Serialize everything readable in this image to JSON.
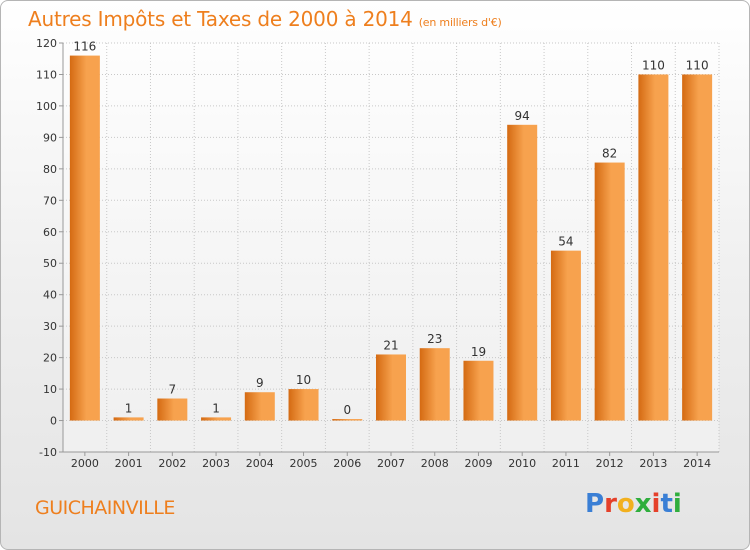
{
  "title": "Autres Impôts et Taxes de 2000 à 2014",
  "title_unit": "(en milliers d'€)",
  "town": "GUICHAINVILLE",
  "logo": {
    "text": "Proxiti",
    "colors": [
      "#3a7fd5",
      "#e5402a",
      "#f2b01e",
      "#2fae3d",
      "#e5402a",
      "#3a7fd5",
      "#2fae3d"
    ]
  },
  "colors": {
    "title": "#ee7f1e",
    "bar_light": "#f7a24e",
    "bar_dark": "#d46a12",
    "grid": "#c8c8c8",
    "axis_text": "#333333"
  },
  "chart_data": {
    "type": "bar",
    "categories": [
      "2000",
      "2001",
      "2002",
      "2003",
      "2004",
      "2005",
      "2006",
      "2007",
      "2008",
      "2009",
      "2010",
      "2011",
      "2012",
      "2013",
      "2014"
    ],
    "values": [
      116,
      1,
      7,
      1,
      9,
      10,
      0,
      21,
      23,
      19,
      94,
      54,
      82,
      110,
      110
    ],
    "data_labels": [
      "116",
      "1",
      "7",
      "1",
      "9",
      "10",
      "0",
      "21",
      "23",
      "19",
      "94",
      "54",
      "82",
      "110",
      "110"
    ],
    "y_ticks": [
      -10,
      0,
      10,
      20,
      30,
      40,
      50,
      60,
      70,
      80,
      90,
      100,
      110,
      120
    ],
    "ylim": [
      -10,
      120
    ],
    "grid": true,
    "xlabel": "",
    "ylabel": ""
  }
}
